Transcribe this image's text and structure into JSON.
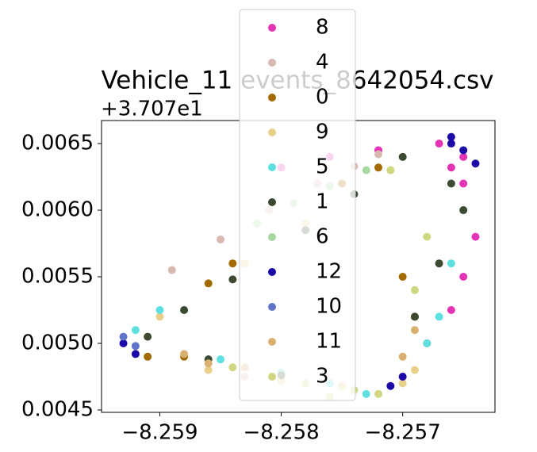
{
  "chart_data": {
    "type": "scatter",
    "title": "Vehicle_11 events_8642054.csv",
    "y_offset_label": "+3.707e1",
    "xlim": [
      -8.25948,
      -8.25624
    ],
    "ylim": [
      0.004482,
      0.006673
    ],
    "xticks": [
      {
        "value": -8.259,
        "label": "−8.259"
      },
      {
        "value": -8.258,
        "label": "−8.258"
      },
      {
        "value": -8.257,
        "label": "−8.257"
      }
    ],
    "yticks": [
      {
        "value": 0.0045,
        "label": "0.0045"
      },
      {
        "value": 0.005,
        "label": "0.0050"
      },
      {
        "value": 0.0055,
        "label": "0.0055"
      },
      {
        "value": 0.006,
        "label": "0.0060"
      },
      {
        "value": 0.0065,
        "label": "0.0065"
      }
    ],
    "grid": false,
    "legend": "upper center",
    "series": [
      {
        "name": "8",
        "color": "#e433b4",
        "x": [
          -8.2565,
          -8.2564,
          -8.2565,
          -8.2566,
          -8.2567,
          -8.2572,
          -8.2576,
          -8.258,
          -8.2565,
          -8.2566
        ],
        "y": [
          0.0062,
          0.0058,
          0.0055,
          0.00525,
          0.0065,
          0.00645,
          0.0064,
          0.00632,
          0.0064,
          0.00632
        ]
      },
      {
        "name": "4",
        "color": "#d9b8b0",
        "x": [
          -8.2589,
          -8.2585,
          -8.2581,
          -8.2577,
          -8.2574,
          -8.2572,
          -8.2583
        ],
        "y": [
          0.00555,
          0.00578,
          0.006,
          0.0062,
          0.00633,
          0.00642,
          0.00475
        ]
      },
      {
        "name": "0",
        "color": "#a36a00",
        "x": [
          -8.2586,
          -8.2584,
          -8.2575,
          -8.2572,
          -8.257,
          -8.2568,
          -8.2569,
          -8.2591,
          -8.2588
        ],
        "y": [
          0.00545,
          0.0056,
          0.0062,
          0.00632,
          0.0055,
          0.005,
          0.0052,
          0.0049,
          0.0049
        ]
      },
      {
        "name": "9",
        "color": "#e8d08a",
        "x": [
          -8.259,
          -8.2583,
          -8.2578,
          -8.2571,
          -8.2569,
          -8.257,
          -8.2575,
          -8.258,
          -8.2586
        ],
        "y": [
          0.0052,
          0.0056,
          0.0059,
          0.0063,
          0.0048,
          0.0047,
          0.00468,
          0.00472,
          0.0048
        ]
      },
      {
        "name": "5",
        "color": "#5fe0e0",
        "x": [
          -8.2592,
          -8.259,
          -8.2585,
          -8.258,
          -8.2576,
          -8.2573,
          -8.2566,
          -8.2567,
          -8.2568
        ],
        "y": [
          0.0051,
          0.00525,
          0.00488,
          0.00478,
          0.0047,
          0.00462,
          0.0056,
          0.0052,
          0.005
        ]
      },
      {
        "name": "1",
        "color": "#3b4a30",
        "x": [
          -8.2591,
          -8.2588,
          -8.2584,
          -8.2578,
          -8.2574,
          -8.257,
          -8.2566,
          -8.2565,
          -8.2567,
          -8.2569,
          -8.2586,
          -8.258
        ],
        "y": [
          0.00505,
          0.00525,
          0.00548,
          0.00585,
          0.00612,
          0.0064,
          0.0062,
          0.006,
          0.0056,
          0.0052,
          0.00488,
          0.00476
        ]
      },
      {
        "name": "6",
        "color": "#a8d8a0",
        "x": [
          -8.2582,
          -8.2579,
          -8.2576,
          -8.2573,
          -8.2578
        ],
        "y": [
          0.0059,
          0.00605,
          0.00618,
          0.0063,
          0.0047
        ]
      },
      {
        "name": "12",
        "color": "#1c0aa8",
        "x": [
          -8.2593,
          -8.2592,
          -8.2566,
          -8.2565,
          -8.257,
          -8.2571,
          -8.2566,
          -8.2564
        ],
        "y": [
          0.005,
          0.00492,
          0.00655,
          0.00645,
          0.00475,
          0.00468,
          0.0065,
          0.00635
        ]
      },
      {
        "name": "10",
        "color": "#5f74c8",
        "x": [
          -8.2593,
          -8.2592
        ],
        "y": [
          0.00505,
          0.00498
        ]
      },
      {
        "name": "11",
        "color": "#dab070",
        "x": [
          -8.2588,
          -8.2586,
          -8.2583,
          -8.257,
          -8.2569
        ],
        "y": [
          0.00492,
          0.00485,
          0.00482,
          0.0049,
          0.0051
        ]
      },
      {
        "name": "3",
        "color": "#cfd880",
        "x": [
          -8.2584,
          -8.2578,
          -8.2574,
          -8.2572,
          -8.2569,
          -8.2568,
          -8.2571,
          -8.2576
        ],
        "y": [
          0.00482,
          0.0047,
          0.00465,
          0.00462,
          0.0054,
          0.0058,
          0.0063,
          0.0046
        ]
      }
    ]
  }
}
